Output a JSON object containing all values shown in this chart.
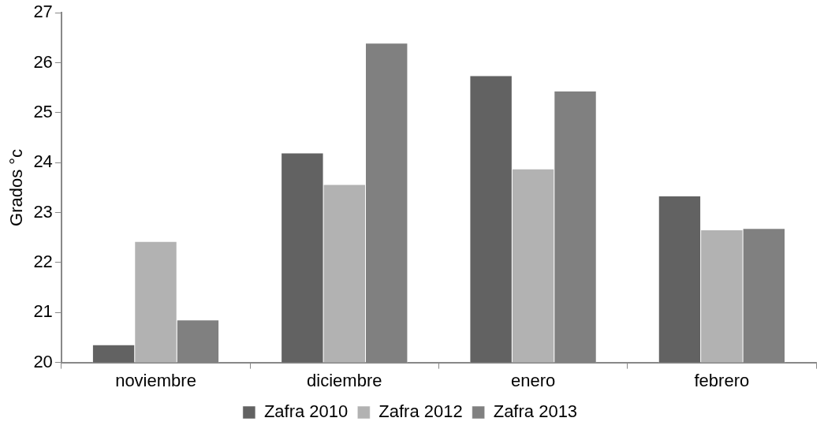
{
  "chart_data": {
    "type": "bar",
    "ylabel": "Grados °c",
    "categories": [
      "noviembre",
      "diciembre",
      "enero",
      "febrero"
    ],
    "series": [
      {
        "name": "Zafra 2010",
        "color": "#626262",
        "values": [
          20.36,
          24.2,
          25.75,
          23.34
        ]
      },
      {
        "name": "Zafra 2012",
        "color": "#b2b2b2",
        "values": [
          22.43,
          23.57,
          23.88,
          22.66
        ]
      },
      {
        "name": "Zafra 2013",
        "color": "#808080",
        "values": [
          20.86,
          26.4,
          25.44,
          22.69
        ]
      }
    ],
    "ylim": [
      20,
      27
    ],
    "yticks": [
      20,
      21,
      22,
      23,
      24,
      25,
      26,
      27
    ],
    "grid": false,
    "legend": "bottom"
  }
}
